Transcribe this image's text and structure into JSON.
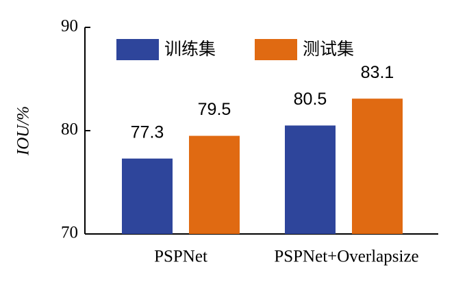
{
  "chart_data": {
    "type": "bar",
    "y_label": "IOU/%",
    "categories": [
      "PSPNet",
      "PSPNet+Overlapsize"
    ],
    "series": [
      {
        "name": "训练集",
        "color": "#2e459b",
        "values": [
          77.3,
          80.5
        ]
      },
      {
        "name": "测试集",
        "color": "#e06a12",
        "values": [
          79.5,
          83.1
        ]
      }
    ],
    "ylim": [
      70,
      90
    ],
    "yticks": [
      70,
      80,
      90
    ]
  }
}
